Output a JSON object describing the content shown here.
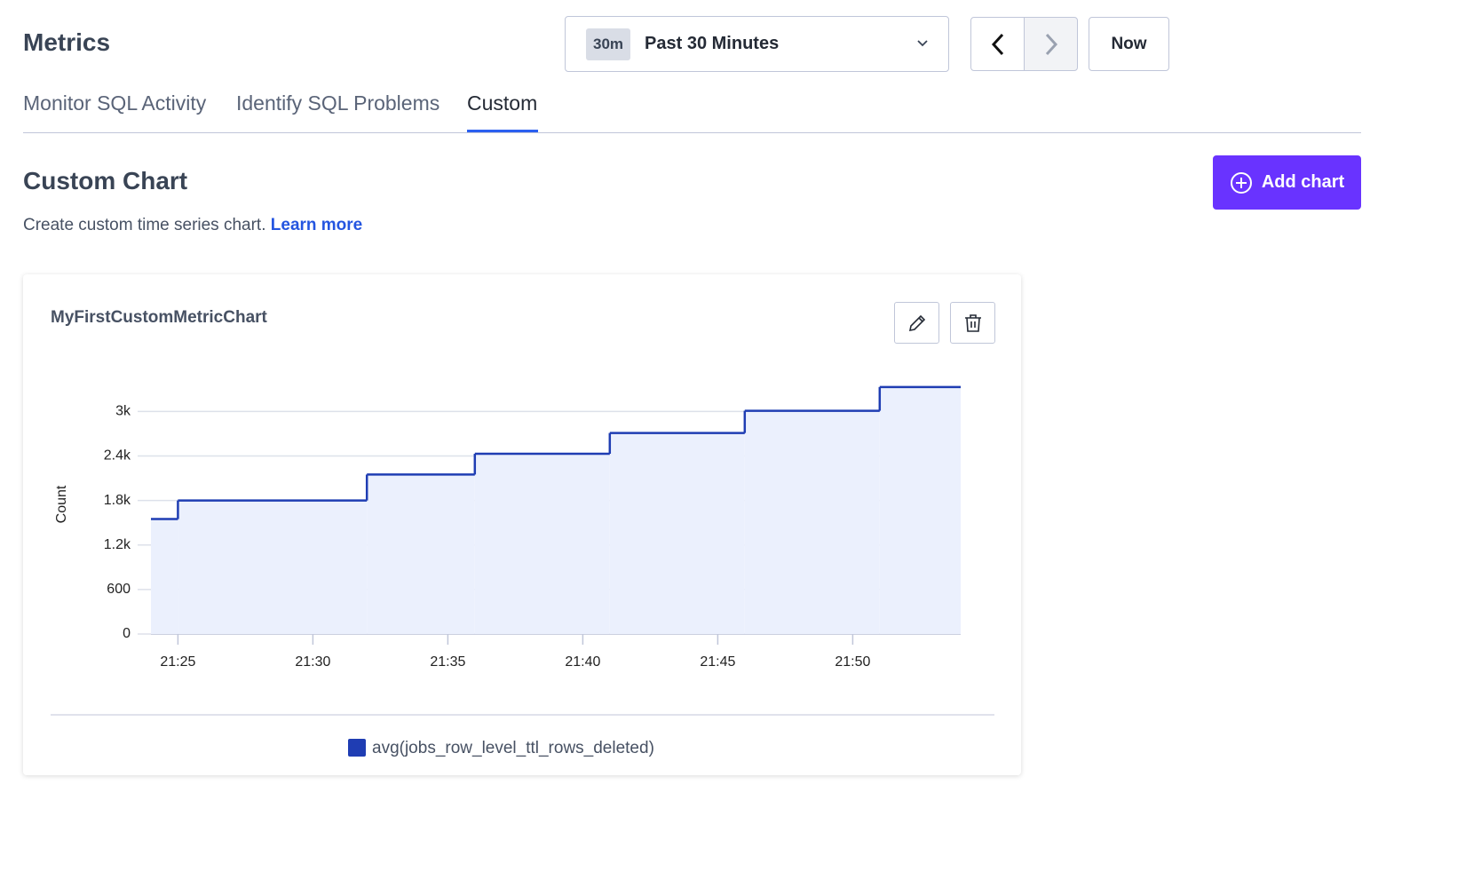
{
  "header": {
    "title": "Metrics",
    "range_badge": "30m",
    "range_label": "Past 30 Minutes",
    "now_button": "Now"
  },
  "tabs": [
    "Monitor SQL Activity",
    "Identify SQL Problems",
    "Custom"
  ],
  "section": {
    "title": "Custom Chart",
    "description": "Create custom time series chart.",
    "link": "Learn more",
    "add_button": "Add chart"
  },
  "chart_data": {
    "type": "step",
    "title": "MyFirstCustomMetricChart",
    "y_label": "Count",
    "x": [
      "21:24",
      "21:25",
      "21:32",
      "21:36",
      "21:41",
      "21:46",
      "21:51"
    ],
    "xlim": [
      "21:24",
      "21:54"
    ],
    "xticks": [
      "21:25",
      "21:30",
      "21:35",
      "21:40",
      "21:45",
      "21:50"
    ],
    "ylim": [
      0,
      3340
    ],
    "yticks": [
      0,
      600,
      {
        "value": 1200,
        "label": "1.2k"
      },
      {
        "value": 1800,
        "label": "1.8k"
      },
      {
        "value": 2400,
        "label": "2.4k"
      },
      {
        "value": 3000,
        "label": "3k"
      }
    ],
    "grid": true,
    "fill_color": "#ebf0fd",
    "series": [
      {
        "name": "avg(jobs_row_level_ttl_rows_deleted)",
        "color": "#1f3db3",
        "values": [
          1550,
          1800,
          2150,
          2430,
          2710,
          3010,
          3330
        ]
      }
    ]
  }
}
